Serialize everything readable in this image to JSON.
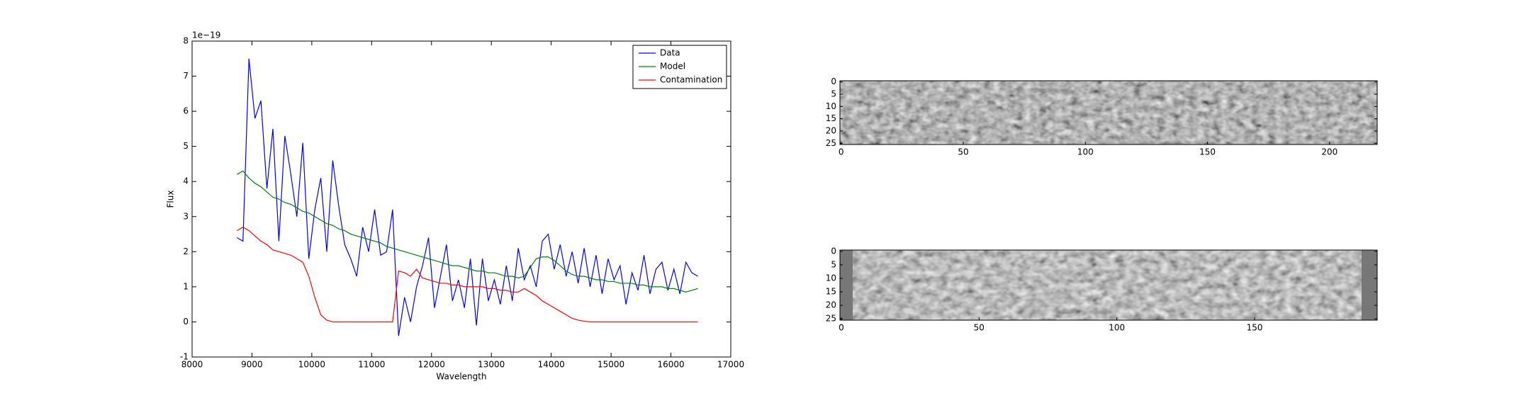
{
  "chart_data": [
    {
      "type": "line",
      "xlabel": "Wavelength",
      "ylabel": "Flux",
      "offset_label": "1e−19",
      "xlim": [
        8000,
        17000
      ],
      "ylim": [
        -1,
        8
      ],
      "xticks": [
        8000,
        9000,
        10000,
        11000,
        12000,
        13000,
        14000,
        15000,
        16000,
        17000
      ],
      "yticks": [
        -1,
        0,
        1,
        2,
        3,
        4,
        5,
        6,
        7,
        8
      ],
      "legend": "upper right",
      "x": [
        8750,
        8850,
        8950,
        9050,
        9150,
        9250,
        9350,
        9450,
        9550,
        9650,
        9750,
        9850,
        9950,
        10050,
        10150,
        10250,
        10350,
        10450,
        10550,
        10650,
        10750,
        10850,
        10950,
        11050,
        11150,
        11250,
        11350,
        11450,
        11550,
        11650,
        11750,
        11850,
        11950,
        12050,
        12150,
        12250,
        12350,
        12450,
        12550,
        12650,
        12750,
        12850,
        12950,
        13050,
        13150,
        13250,
        13350,
        13450,
        13550,
        13650,
        13750,
        13850,
        13950,
        14050,
        14150,
        14250,
        14350,
        14450,
        14550,
        14650,
        14750,
        14850,
        14950,
        15050,
        15150,
        15250,
        15350,
        15450,
        15550,
        15650,
        15750,
        15850,
        15950,
        16050,
        16150,
        16250,
        16350,
        16450
      ],
      "series": [
        {
          "name": "Data",
          "color": "#0000ff",
          "values": [
            2.4,
            2.3,
            7.5,
            5.8,
            6.3,
            3.8,
            5.5,
            2.3,
            5.3,
            4.2,
            3.0,
            5.1,
            1.8,
            3.2,
            4.1,
            2.0,
            4.6,
            3.3,
            2.2,
            1.8,
            1.3,
            2.7,
            2.0,
            3.2,
            1.9,
            2.0,
            3.2,
            -0.4,
            0.7,
            0.0,
            1.0,
            1.6,
            2.4,
            0.4,
            1.3,
            2.2,
            0.6,
            1.2,
            0.4,
            1.8,
            -0.1,
            1.8,
            0.6,
            1.2,
            0.5,
            1.6,
            0.6,
            2.1,
            1.2,
            1.6,
            1.0,
            2.3,
            2.5,
            1.5,
            2.2,
            1.3,
            2.0,
            1.1,
            2.1,
            1.0,
            1.9,
            0.8,
            1.8,
            1.2,
            1.6,
            0.5,
            1.4,
            0.9,
            1.9,
            0.8,
            1.5,
            1.7,
            0.9,
            1.5,
            0.8,
            1.7,
            1.4,
            1.3
          ]
        },
        {
          "name": "Model",
          "color": "#008000",
          "values": [
            4.2,
            4.3,
            4.1,
            3.95,
            3.85,
            3.7,
            3.55,
            3.5,
            3.4,
            3.35,
            3.25,
            3.15,
            3.1,
            3.0,
            2.9,
            2.8,
            2.75,
            2.65,
            2.6,
            2.5,
            2.45,
            2.4,
            2.35,
            2.3,
            2.25,
            2.15,
            2.1,
            2.05,
            2.0,
            1.95,
            1.9,
            1.85,
            1.8,
            1.75,
            1.7,
            1.65,
            1.6,
            1.6,
            1.55,
            1.5,
            1.45,
            1.45,
            1.4,
            1.4,
            1.35,
            1.3,
            1.3,
            1.25,
            1.3,
            1.55,
            1.8,
            1.85,
            1.85,
            1.75,
            1.6,
            1.45,
            1.35,
            1.3,
            1.3,
            1.25,
            1.2,
            1.2,
            1.15,
            1.15,
            1.1,
            1.1,
            1.1,
            1.05,
            1.05,
            1.0,
            1.0,
            1.0,
            0.95,
            0.95,
            0.9,
            0.85,
            0.9,
            0.95
          ]
        },
        {
          "name": "Contamination",
          "color": "#ff0000",
          "values": [
            2.6,
            2.7,
            2.6,
            2.45,
            2.3,
            2.2,
            2.05,
            2.0,
            1.95,
            1.9,
            1.8,
            1.7,
            1.3,
            0.7,
            0.2,
            0.05,
            0,
            0,
            0,
            0,
            0,
            0,
            0,
            0,
            0,
            0,
            0,
            1.45,
            1.4,
            1.3,
            1.5,
            1.25,
            1.2,
            1.15,
            1.1,
            1.1,
            1.05,
            1.05,
            1.0,
            1.0,
            1.0,
            1.0,
            0.95,
            0.95,
            0.9,
            0.9,
            0.85,
            0.85,
            0.95,
            0.85,
            0.75,
            0.6,
            0.5,
            0.4,
            0.3,
            0.2,
            0.1,
            0.05,
            0.02,
            0,
            0,
            0,
            0,
            0,
            0,
            0,
            0,
            0,
            0,
            0,
            0,
            0,
            0,
            0,
            0,
            0,
            0,
            0
          ]
        }
      ]
    },
    {
      "type": "image",
      "xlim": [
        -0.5,
        219.5
      ],
      "ylim": [
        25.5,
        -0.5
      ],
      "xticks": [
        0,
        50,
        100,
        150,
        200
      ],
      "yticks": [
        0,
        5,
        10,
        15,
        20,
        25
      ]
    },
    {
      "type": "image",
      "xlim": [
        -0.5,
        194.5
      ],
      "ylim": [
        25.5,
        -0.5
      ],
      "xticks": [
        0,
        50,
        100,
        150
      ],
      "yticks": [
        0,
        5,
        10,
        15,
        20,
        25
      ]
    }
  ]
}
